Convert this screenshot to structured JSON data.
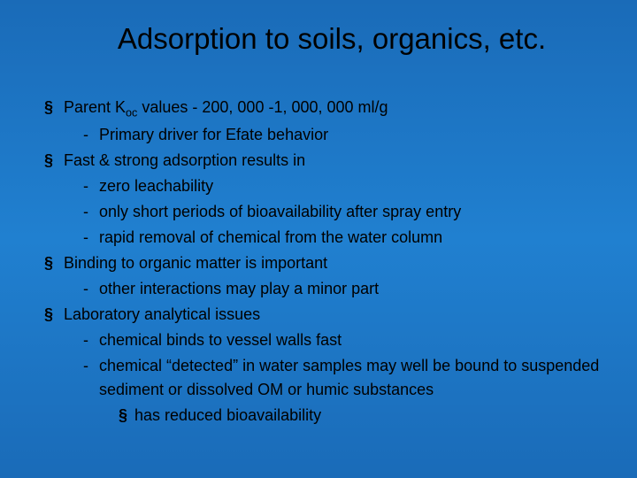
{
  "title": "Adsorption to soils, organics, etc.",
  "items": {
    "p1": "Parent K",
    "p1sub": "oc",
    "p1rest": " values - 200, 000 -1, 000, 000 ml/g",
    "p1a": "Primary driver for Efate behavior",
    "p2": "Fast & strong adsorption results in",
    "p2a": "zero leachability",
    "p2b": "only short periods of bioavailability after spray entry",
    "p2c": "rapid removal of chemical from the water column",
    "p3": "Binding to organic matter is important",
    "p3a": "other interactions may play a minor part",
    "p4": "Laboratory analytical issues",
    "p4a": "chemical binds to vessel walls fast",
    "p4b": "chemical “detected” in water samples may well be bound to suspended sediment or dissolved OM or humic substances",
    "p4b1": "has reduced bioavailability"
  }
}
